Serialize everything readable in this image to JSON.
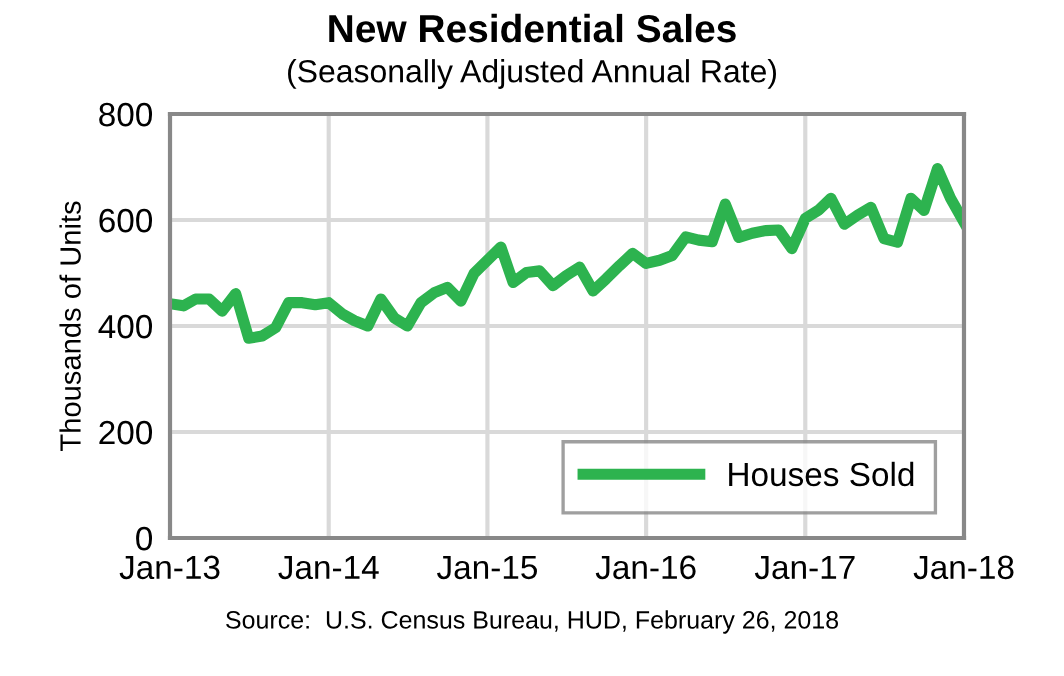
{
  "chart_data": {
    "type": "line",
    "title": "New Residential Sales",
    "subtitle": "(Seasonally Adjusted Annual Rate)",
    "ylabel": "Thousands of Units",
    "annotations": [
      "Source:  U.S. Census Bureau, HUD, February 26, 2018"
    ],
    "x": [
      "2013-01",
      "2013-02",
      "2013-03",
      "2013-04",
      "2013-05",
      "2013-06",
      "2013-07",
      "2013-08",
      "2013-09",
      "2013-10",
      "2013-11",
      "2013-12",
      "2014-01",
      "2014-02",
      "2014-03",
      "2014-04",
      "2014-05",
      "2014-06",
      "2014-07",
      "2014-08",
      "2014-09",
      "2014-10",
      "2014-11",
      "2014-12",
      "2015-01",
      "2015-02",
      "2015-03",
      "2015-04",
      "2015-05",
      "2015-06",
      "2015-07",
      "2015-08",
      "2015-09",
      "2015-10",
      "2015-11",
      "2015-12",
      "2016-01",
      "2016-02",
      "2016-03",
      "2016-04",
      "2016-05",
      "2016-06",
      "2016-07",
      "2016-08",
      "2016-09",
      "2016-10",
      "2016-11",
      "2016-12",
      "2017-01",
      "2017-02",
      "2017-03",
      "2017-04",
      "2017-05",
      "2017-06",
      "2017-07",
      "2017-08",
      "2017-09",
      "2017-10",
      "2017-11",
      "2017-12",
      "2018-01"
    ],
    "series": [
      {
        "name": "Houses Sold",
        "color": "#2db34f",
        "values": [
          442,
          438,
          451,
          451,
          428,
          461,
          377,
          381,
          397,
          444,
          444,
          440,
          444,
          423,
          410,
          400,
          451,
          415,
          400,
          444,
          463,
          473,
          447,
          499,
          524,
          549,
          482,
          501,
          504,
          476,
          495,
          511,
          466,
          489,
          514,
          537,
          518,
          524,
          533,
          568,
          562,
          559,
          630,
          567,
          575,
          580,
          581,
          546,
          603,
          619,
          641,
          592,
          609,
          624,
          565,
          558,
          641,
          618,
          697,
          641,
          596
        ]
      }
    ],
    "xlim": [
      "2013-01",
      "2018-01"
    ],
    "xticks": [
      {
        "value": "2013-01",
        "label": "Jan-13"
      },
      {
        "value": "2014-01",
        "label": "Jan-14"
      },
      {
        "value": "2015-01",
        "label": "Jan-15"
      },
      {
        "value": "2016-01",
        "label": "Jan-16"
      },
      {
        "value": "2017-01",
        "label": "Jan-17"
      },
      {
        "value": "2018-01",
        "label": "Jan-18"
      }
    ],
    "ylim": [
      0,
      800
    ],
    "yticks": [
      0,
      200,
      400,
      600,
      800
    ],
    "grid": true,
    "legend": "bottom right",
    "marker": "none",
    "line_style": "solid"
  }
}
